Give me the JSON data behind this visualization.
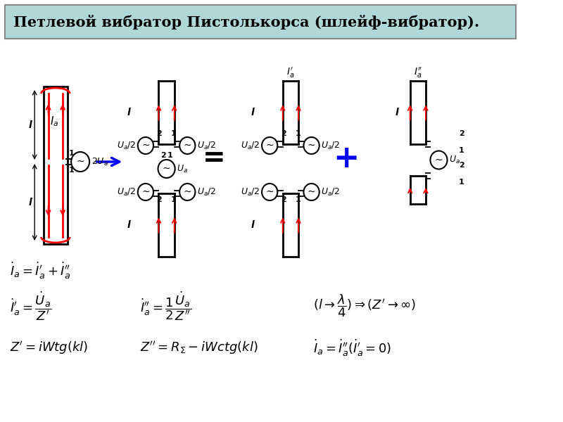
{
  "title": "Петлевой вибратор Пистолькорса (шлейф-вибратор).",
  "title_bg": "#b0d8d8",
  "title_border": "#888888",
  "bg_color": "#ffffff",
  "formula1": "$\\dot{I}_a = \\dot{I}_a^{\\prime} + \\dot{I}_a^{\\prime\\prime}$",
  "formula2": "$\\dot{I}_a^{\\prime} = \\dfrac{\\dot{U}_a}{Z^{\\prime}}$",
  "formula3": "$\\dot{I}_a^{\\prime\\prime} = \\dfrac{1}{2}\\dfrac{\\dot{U}_a}{Z^{\\prime\\prime}}$",
  "formula4": "$(l \\rightarrow \\dfrac{\\lambda}{4}) \\Rightarrow (Z^{\\prime} \\rightarrow \\infty)$",
  "formula5": "$Z^{\\prime} = iWtg(kl)$",
  "formula6": "$Z^{\\prime\\prime} = R_{\\Sigma} - iWctg(kl)$",
  "formula7": "$\\dot{I}_a = \\dot{I}_a^{\\prime\\prime}(\\dot{I}_a^{\\prime} = 0)$"
}
